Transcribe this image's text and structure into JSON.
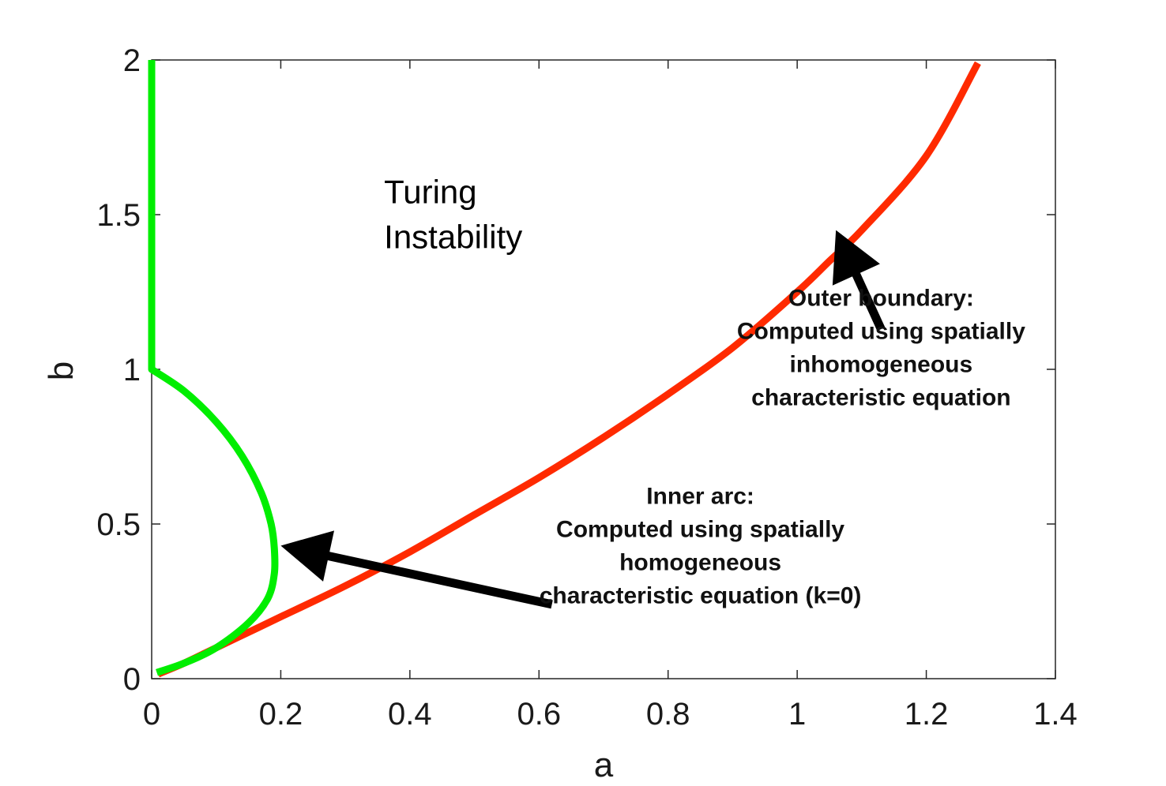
{
  "chart_data": {
    "type": "line",
    "title": "",
    "xlabel": "a",
    "ylabel": "b",
    "xlim": [
      0,
      1.4
    ],
    "ylim": [
      0,
      2
    ],
    "xticks": [
      "0",
      "0.2",
      "0.4",
      "0.6",
      "0.8",
      "1",
      "1.2",
      "1.4"
    ],
    "xtick_values": [
      0,
      0.2,
      0.4,
      0.6,
      0.8,
      1,
      1.2,
      1.4
    ],
    "yticks": [
      "0",
      "0.5",
      "1",
      "1.5",
      "2"
    ],
    "ytick_values": [
      0,
      0.5,
      1,
      1.5,
      2
    ],
    "grid": false,
    "box": true,
    "series": [
      {
        "color": "#ff2a00",
        "x": [
          0.01,
          0.05,
          0.1,
          0.15,
          0.2,
          0.3,
          0.4,
          0.5,
          0.6,
          0.7,
          0.8,
          0.9,
          1.0,
          1.05,
          1.1,
          1.2,
          1.28
        ],
        "y": [
          0.015,
          0.05,
          0.1,
          0.15,
          0.2,
          0.3,
          0.41,
          0.53,
          0.65,
          0.78,
          0.92,
          1.07,
          1.25,
          1.35,
          1.45,
          1.69,
          1.99
        ]
      },
      {
        "color": "#00ee00",
        "x": [
          0.008,
          0.05,
          0.1,
          0.15,
          0.18,
          0.19,
          0.19,
          0.185,
          0.17,
          0.14,
          0.1,
          0.05,
          0.0,
          0.0,
          0.0
        ],
        "y": [
          0.02,
          0.05,
          0.1,
          0.18,
          0.26,
          0.34,
          0.42,
          0.5,
          0.6,
          0.72,
          0.83,
          0.93,
          1.0,
          1.5,
          2.0
        ]
      }
    ],
    "annotations": [
      {
        "lines": [
          "Turing",
          "Instability"
        ],
        "x": 0.36,
        "y": 1.5
      },
      {
        "lines": [
          "Outer boundary:",
          "Computed using spatially",
          "inhomogeneous",
          "characteristic equation"
        ],
        "x": 1.13,
        "y": 1.07,
        "arrow_from": [
          1.13,
          1.13
        ],
        "arrow_to": [
          1.06,
          1.45
        ]
      },
      {
        "lines": [
          "Inner arc:",
          "Computed using spatially",
          "homogeneous",
          "characteristic equation (k=0)"
        ],
        "x": 0.85,
        "y": 0.43,
        "arrow_from": [
          0.62,
          0.24
        ],
        "arrow_to": [
          0.2,
          0.43
        ]
      }
    ]
  }
}
